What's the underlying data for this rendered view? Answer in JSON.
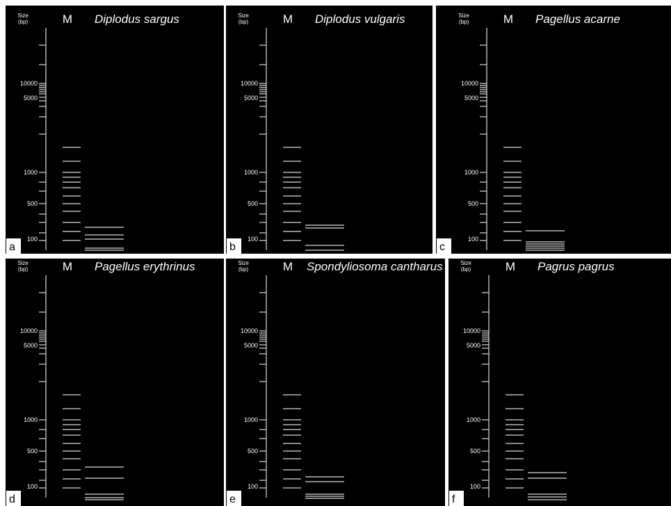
{
  "size_axis": {
    "title_lines": [
      "Size",
      "(bp)"
    ],
    "labels": [
      10000,
      5000,
      1000,
      500,
      100
    ]
  },
  "marker_lane": "M",
  "panels": [
    {
      "letter": "a",
      "title": "Diplodus sargus"
    },
    {
      "letter": "b",
      "title": "Diplodus vulgaris"
    },
    {
      "letter": "c",
      "title": "Pagellus acarne"
    },
    {
      "letter": "d",
      "title": "Pagellus erythrinus"
    },
    {
      "letter": "e",
      "title": "Spondyliosoma cantharus"
    },
    {
      "letter": "f",
      "title": "Pagrus pagrus"
    }
  ]
}
